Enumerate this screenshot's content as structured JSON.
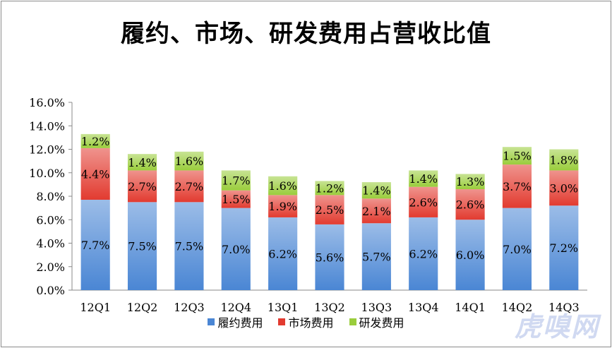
{
  "chart_data": {
    "type": "bar",
    "stacked": true,
    "title": "履约、市场、研发费用占营收比值",
    "categories": [
      "12Q1",
      "12Q2",
      "12Q3",
      "12Q4",
      "13Q1",
      "13Q2",
      "13Q3",
      "13Q4",
      "14Q1",
      "14Q2",
      "14Q3"
    ],
    "series": [
      {
        "name": "履约费用",
        "color": "#4a86d4",
        "values": [
          7.7,
          7.5,
          7.5,
          7.0,
          6.2,
          5.6,
          5.7,
          6.2,
          6.0,
          7.0,
          7.2
        ],
        "labels": [
          "7.7%",
          "7.5%",
          "7.5%",
          "7.0%",
          "6.2%",
          "5.6%",
          "5.7%",
          "6.2%",
          "6.0%",
          "7.0%",
          "7.2%"
        ]
      },
      {
        "name": "市场费用",
        "color": "#e23b30",
        "values": [
          4.4,
          2.7,
          2.7,
          1.5,
          1.9,
          2.5,
          2.1,
          2.6,
          2.6,
          3.7,
          3.0
        ],
        "labels": [
          "4.4%",
          "2.7%",
          "2.7%",
          "1.5%",
          "1.9%",
          "2.5%",
          "2.1%",
          "2.6%",
          "2.6%",
          "3.7%",
          "3.0%"
        ]
      },
      {
        "name": "研发费用",
        "color": "#9acd3c",
        "values": [
          1.2,
          1.4,
          1.6,
          1.7,
          1.6,
          1.2,
          1.4,
          1.4,
          1.3,
          1.5,
          1.8
        ],
        "labels": [
          "1.2%",
          "1.4%",
          "1.6%",
          "1.7%",
          "1.6%",
          "1.2%",
          "1.4%",
          "1.4%",
          "1.3%",
          "1.5%",
          "1.8%"
        ]
      }
    ],
    "ylim": [
      0,
      16
    ],
    "yticks": [
      0,
      2,
      4,
      6,
      8,
      10,
      12,
      14,
      16
    ],
    "ytick_labels": [
      "0.0%",
      "2.0%",
      "4.0%",
      "6.0%",
      "8.0%",
      "10.0%",
      "12.0%",
      "14.0%",
      "16.0%"
    ],
    "grid": false,
    "legend_position": "bottom"
  },
  "watermark": "虎嗅网"
}
